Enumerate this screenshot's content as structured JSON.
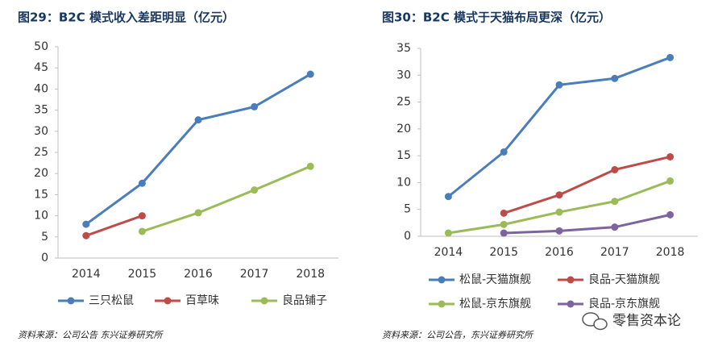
{
  "chart_data": [
    {
      "type": "line",
      "title": "图29：B2C 模式收入差距明显（亿元）",
      "categories": [
        "2014",
        "2015",
        "2016",
        "2017",
        "2018"
      ],
      "series": [
        {
          "name": "三只松鼠",
          "color": "#4a7ebb",
          "values": [
            8,
            17.7,
            32.7,
            35.8,
            43.5
          ]
        },
        {
          "name": "百草味",
          "color": "#be4b48",
          "values": [
            5.3,
            10,
            null,
            null,
            null
          ]
        },
        {
          "name": "良品铺子",
          "color": "#9bbb59",
          "values": [
            null,
            6.3,
            10.7,
            16.1,
            21.7
          ]
        }
      ],
      "ylim": [
        0,
        50
      ],
      "yticks": [
        0,
        5,
        10,
        15,
        20,
        25,
        30,
        35,
        40,
        45,
        50
      ],
      "grid": false,
      "legend": "bottom"
    },
    {
      "type": "line",
      "title": "图30：B2C 模式于天猫布局更深（亿元）",
      "categories": [
        "2014",
        "2015",
        "2016",
        "2017",
        "2018"
      ],
      "series": [
        {
          "name": "松鼠-天猫旗舰",
          "color": "#4a7ebb",
          "values": [
            7.4,
            15.7,
            28.2,
            29.4,
            33.3
          ]
        },
        {
          "name": "良品-天猫旗舰",
          "color": "#be4b48",
          "values": [
            null,
            4.3,
            7.7,
            12.4,
            14.8
          ]
        },
        {
          "name": "松鼠-京东旗舰",
          "color": "#9bbb59",
          "values": [
            0.6,
            2.2,
            4.5,
            6.5,
            10.3
          ]
        },
        {
          "name": "良品-京东旗舰",
          "color": "#7e649e",
          "values": [
            null,
            0.6,
            1.0,
            1.7,
            4.0
          ]
        }
      ],
      "ylim": [
        0,
        35
      ],
      "yticks": [
        0,
        5,
        10,
        15,
        20,
        25,
        30,
        35
      ],
      "grid": false,
      "legend": "bottom"
    }
  ],
  "sources": [
    "资料来源：公司公告 东兴证券研究所",
    "资料来源：公司公告，东兴证券研究所"
  ],
  "watermark": "零售资本论"
}
